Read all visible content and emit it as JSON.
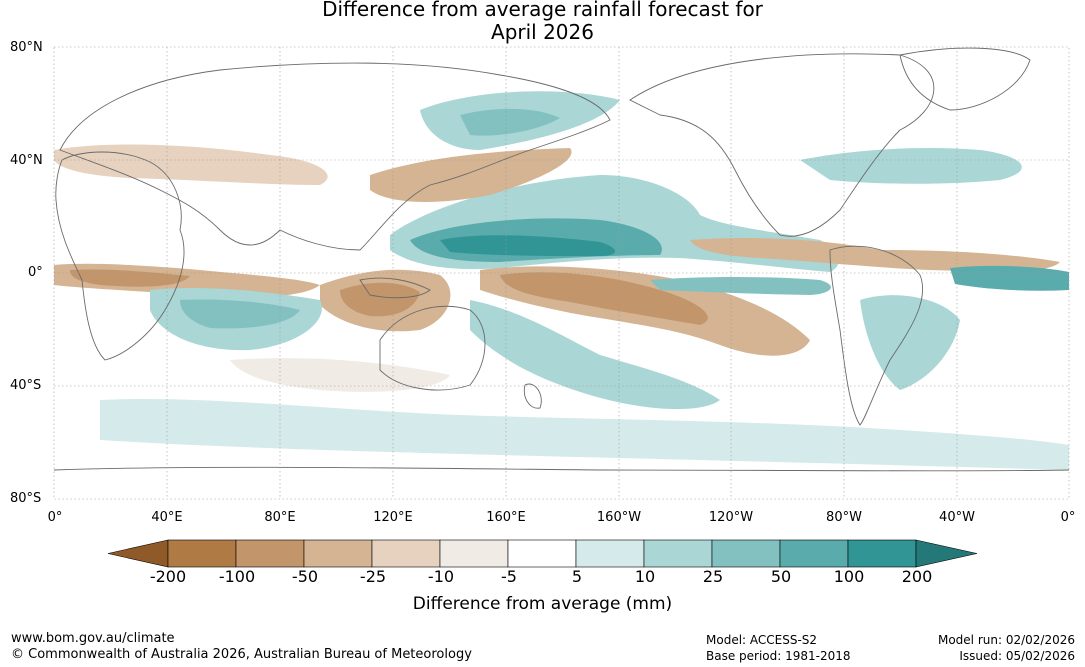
{
  "title": {
    "line1": "Difference from average rainfall forecast for",
    "line2": "April 2026"
  },
  "map": {
    "lat_labels": [
      "80°N",
      "40°N",
      "0°",
      "40°S",
      "80°S"
    ],
    "lon_labels": [
      "0°",
      "40°E",
      "80°E",
      "120°E",
      "160°E",
      "160°W",
      "120°W",
      "80°W",
      "40°W",
      "0°"
    ]
  },
  "colorbar": {
    "ticks": [
      "-200",
      "-100",
      "-50",
      "-25",
      "-10",
      "-5",
      "5",
      "10",
      "25",
      "50",
      "100",
      "200"
    ],
    "colors": {
      "below_min": "#8f5a28",
      "bins": [
        "#b07a44",
        "#c2956a",
        "#d4b493",
        "#e6d2bf",
        "#f1ebe6",
        "#ffffff",
        "#d5eaea",
        "#aad6d6",
        "#83c1c1",
        "#5aabab",
        "#319595"
      ],
      "above_max": "#247878"
    },
    "label": "Difference from average (mm)"
  },
  "footer": {
    "website": "www.bom.gov.au/climate",
    "copyright": "© Commonwealth of Australia 2026, Australian Bureau of Meteorology",
    "model": "Model: ACCESS-S2",
    "base_period": "Base period: 1981-2018",
    "model_run": "Model run: 02/02/2026",
    "issued": "Issued: 05/02/2026"
  }
}
